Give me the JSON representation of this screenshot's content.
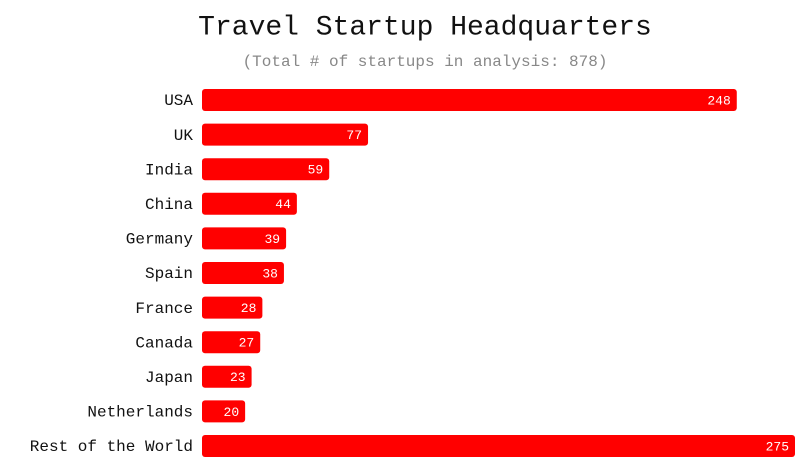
{
  "chart_data": {
    "type": "bar",
    "orientation": "horizontal",
    "title": "Travel Startup Headquarters",
    "subtitle": "(Total # of startups in analysis: 878)",
    "categories": [
      "USA",
      "UK",
      "India",
      "China",
      "Germany",
      "Spain",
      "France",
      "Canada",
      "Japan",
      "Netherlands",
      "Rest of the World"
    ],
    "values": [
      248,
      77,
      59,
      44,
      39,
      38,
      28,
      27,
      23,
      20,
      275
    ],
    "color": "#ff0000"
  }
}
